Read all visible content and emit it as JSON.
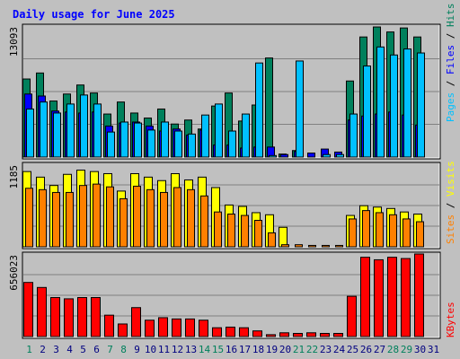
{
  "chart_data": {
    "type": "bar",
    "title": "Daily usage for June 2025",
    "colors": {
      "background": "#c0c0c0",
      "title": "#0000ff",
      "hits": "#00805c",
      "files": "#0000ff",
      "pages": "#00c0ff",
      "visits": "#ffff00",
      "sites": "#ff8000",
      "kbytes": "#ff0000",
      "weekend_label": "#00805c",
      "weekday_label": "#000080"
    },
    "categories": [
      "1",
      "2",
      "3",
      "4",
      "5",
      "6",
      "7",
      "8",
      "9",
      "10",
      "11",
      "12",
      "13",
      "14",
      "15",
      "16",
      "17",
      "18",
      "19",
      "20",
      "21",
      "22",
      "23",
      "24",
      "25",
      "26",
      "27",
      "28",
      "29",
      "30",
      "31"
    ],
    "weekend_days": [
      "1",
      "7",
      "8",
      "14",
      "15",
      "21",
      "22",
      "28",
      "29"
    ],
    "panels": [
      {
        "id": "top",
        "ymax": 13093,
        "ymax_label": "13093",
        "legend": [
          {
            "text": "Pages",
            "color": "#00c0ff"
          },
          {
            "text": " / ",
            "color": "#000000"
          },
          {
            "text": "Files",
            "color": "#0000ff"
          },
          {
            "text": " / ",
            "color": "#000000"
          },
          {
            "text": "Hits",
            "color": "#00805c"
          }
        ],
        "series": [
          {
            "name": "Hits",
            "color": "#00805c",
            "values": [
              7800,
              8400,
              5600,
              6300,
              7200,
              6400,
              4300,
              5500,
              4400,
              3900,
              4800,
              3300,
              3700,
              2800,
              5100,
              6400,
              3600,
              5200,
              9900,
              300,
              650,
              0,
              0,
              0,
              7600,
              12000,
              13000,
              12500,
              12900,
              12000,
              0
            ]
          },
          {
            "name": "Files",
            "color": "#0000ff",
            "values": [
              6300,
              6100,
              4600,
              4500,
              4400,
              4500,
              3100,
              3400,
              3500,
              3100,
              2600,
              2800,
              2200,
              2700,
              1200,
              1200,
              900,
              1000,
              1000,
              250,
              550,
              400,
              800,
              500,
              3700,
              4100,
              4300,
              4500,
              4200,
              3200,
              0
            ]
          },
          {
            "name": "Pages",
            "color": "#00c0ff",
            "values": [
              4800,
              5500,
              4400,
              5300,
              6200,
              5300,
              2500,
              3500,
              3400,
              2700,
              3500,
              2600,
              2300,
              4200,
              5300,
              2600,
              4300,
              9400,
              150,
              0,
              9600,
              0,
              250,
              250,
              4300,
              9100,
              11000,
              10200,
              10800,
              10400,
              0
            ]
          }
        ]
      },
      {
        "id": "middle",
        "ymax": 1185,
        "ymax_label": "1185",
        "legend": [
          {
            "text": "Sites",
            "color": "#ff8000"
          },
          {
            "text": " / ",
            "color": "#000000"
          },
          {
            "text": "Visits",
            "color": "#ffff00"
          }
        ],
        "series": [
          {
            "name": "Visits",
            "color": "#ffff00",
            "values": [
              1080,
              1000,
              880,
              1040,
              1100,
              1080,
              1050,
              800,
              1050,
              1000,
              950,
              1050,
              960,
              1000,
              850,
              600,
              580,
              490,
              460,
              280,
              0,
              0,
              0,
              0,
              450,
              590,
              570,
              550,
              500,
              470,
              0
            ]
          },
          {
            "name": "Sites",
            "color": "#ff8000",
            "values": [
              840,
              820,
              780,
              780,
              880,
              900,
              860,
              690,
              870,
              820,
              780,
              850,
              820,
              730,
              500,
              470,
              450,
              380,
              200,
              30,
              30,
              20,
              20,
              20,
              400,
              520,
              490,
              460,
              400,
              360,
              0
            ]
          }
        ]
      },
      {
        "id": "bottom",
        "ymax": 656023,
        "ymax_label": "656023",
        "legend": [
          {
            "text": "KBytes",
            "color": "#ff0000"
          }
        ],
        "series": [
          {
            "name": "KBytes",
            "color": "#ff0000",
            "values": [
              430000,
              390000,
              310000,
              300000,
              310000,
              310000,
              170000,
              100000,
              230000,
              130000,
              150000,
              140000,
              140000,
              130000,
              70000,
              75000,
              70000,
              45000,
              15000,
              30000,
              25000,
              30000,
              25000,
              25000,
              320000,
              630000,
              610000,
              630000,
              620000,
              670000,
              0
            ]
          }
        ]
      }
    ]
  }
}
